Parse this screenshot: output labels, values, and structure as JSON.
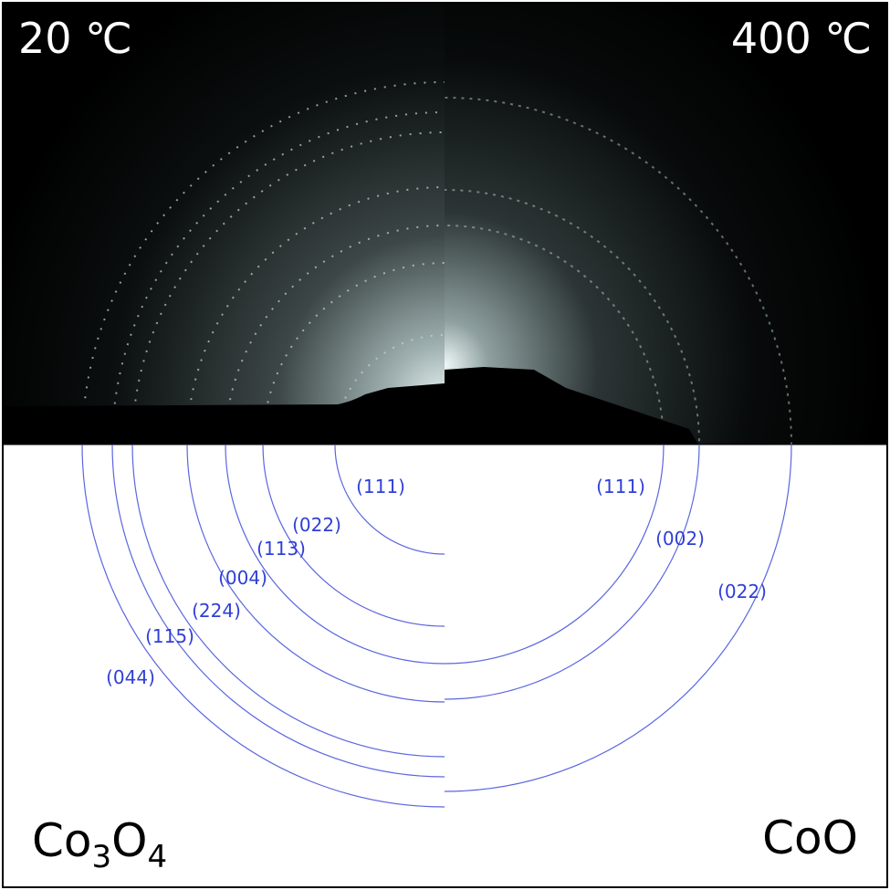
{
  "panels": {
    "left": {
      "temperature": "20 ℃",
      "phase": {
        "parts": [
          "Co",
          "3",
          "O",
          "4"
        ]
      },
      "rings": [
        "(111)",
        "(022)",
        "(113)",
        "(004)",
        "(224)",
        "(115)",
        "(044)"
      ]
    },
    "right": {
      "temperature": "400 ℃",
      "phase": {
        "parts": [
          "CoO"
        ]
      },
      "rings": [
        "(111)",
        "(002)",
        "(022)"
      ]
    }
  }
}
